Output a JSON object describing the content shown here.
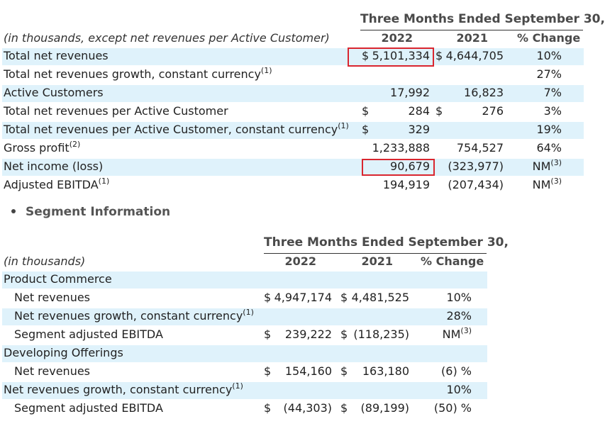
{
  "table1": {
    "header_period": "Three Months Ended September 30,",
    "header_caption": "(in thousands, except net revenues per Active Customer)",
    "col_2022": "2022",
    "col_2021": "2021",
    "col_change": "% Change",
    "rows": [
      {
        "label": "Total net revenues",
        "sup": "",
        "c1": "$",
        "v1": "5,101,334",
        "c2": "$",
        "v2": "4,644,705",
        "chg": "10%",
        "chg_sup": ""
      },
      {
        "label": "Total net revenues growth, constant currency",
        "sup": "(1)",
        "c1": "",
        "v1": "",
        "c2": "",
        "v2": "",
        "chg": "27%",
        "chg_sup": ""
      },
      {
        "label": "Active Customers",
        "sup": "",
        "c1": "",
        "v1": "17,992",
        "c2": "",
        "v2": "16,823",
        "chg": "7%",
        "chg_sup": ""
      },
      {
        "label": "Total net revenues per Active Customer",
        "sup": "",
        "c1": "$",
        "v1": "284",
        "c2": "$",
        "v2": "276",
        "chg": "3%",
        "chg_sup": ""
      },
      {
        "label": "Total net revenues per Active Customer, constant currency",
        "sup": "(1)",
        "c1": "$",
        "v1": "329",
        "c2": "",
        "v2": "",
        "chg": "19%",
        "chg_sup": ""
      },
      {
        "label": "Gross profit",
        "sup": "(2)",
        "c1": "",
        "v1": "1,233,888",
        "c2": "",
        "v2": "754,527",
        "chg": "64%",
        "chg_sup": ""
      },
      {
        "label": "Net income (loss)",
        "sup": "",
        "c1": "",
        "v1": "90,679",
        "c2": "",
        "v2": "(323,977)",
        "chg": "NM",
        "chg_sup": "(3)"
      },
      {
        "label": "Adjusted EBITDA",
        "sup": "(1)",
        "c1": "",
        "v1": "194,919",
        "c2": "",
        "v2": "(207,434)",
        "chg": "NM",
        "chg_sup": "(3)"
      }
    ]
  },
  "segment_heading": "Segment Information",
  "table2": {
    "header_period": "Three Months Ended September 30,",
    "header_caption": "(in thousands)",
    "col_2022": "2022",
    "col_2021": "2021",
    "col_change": "% Change",
    "rows": [
      {
        "label": "Product Commerce",
        "sup": "",
        "indent": false,
        "c1": "",
        "v1": "",
        "c2": "",
        "v2": "",
        "chg": "",
        "chg_sup": ""
      },
      {
        "label": "Net revenues",
        "sup": "",
        "indent": true,
        "c1": "$",
        "v1": "4,947,174",
        "c2": "$",
        "v2": "4,481,525",
        "chg": "10%",
        "chg_sup": ""
      },
      {
        "label": "Net revenues growth, constant currency",
        "sup": "(1)",
        "indent": true,
        "c1": "",
        "v1": "",
        "c2": "",
        "v2": "",
        "chg": "28%",
        "chg_sup": ""
      },
      {
        "label": "Segment adjusted EBITDA",
        "sup": "",
        "indent": true,
        "c1": "$",
        "v1": "239,222",
        "c2": "$",
        "v2": "(118,235)",
        "chg": "NM",
        "chg_sup": "(3)"
      },
      {
        "label": "Developing Offerings",
        "sup": "",
        "indent": false,
        "c1": "",
        "v1": "",
        "c2": "",
        "v2": "",
        "chg": "",
        "chg_sup": ""
      },
      {
        "label": "Net revenues",
        "sup": "",
        "indent": true,
        "c1": "$",
        "v1": "154,160",
        "c2": "$",
        "v2": "163,180",
        "chg": "(6) %",
        "chg_sup": ""
      },
      {
        "label": "Net revenues growth, constant currency",
        "sup": "(1)",
        "indent": false,
        "c1": "",
        "v1": "",
        "c2": "",
        "v2": "",
        "chg": "10%",
        "chg_sup": ""
      },
      {
        "label": "Segment adjusted EBITDA",
        "sup": "",
        "indent": true,
        "c1": "$",
        "v1": "(44,303)",
        "c2": "$",
        "v2": "(89,199)",
        "chg": "(50) %",
        "chg_sup": ""
      }
    ]
  },
  "colors": {
    "band": "#dff2fb",
    "highlight": "#d9262f"
  }
}
